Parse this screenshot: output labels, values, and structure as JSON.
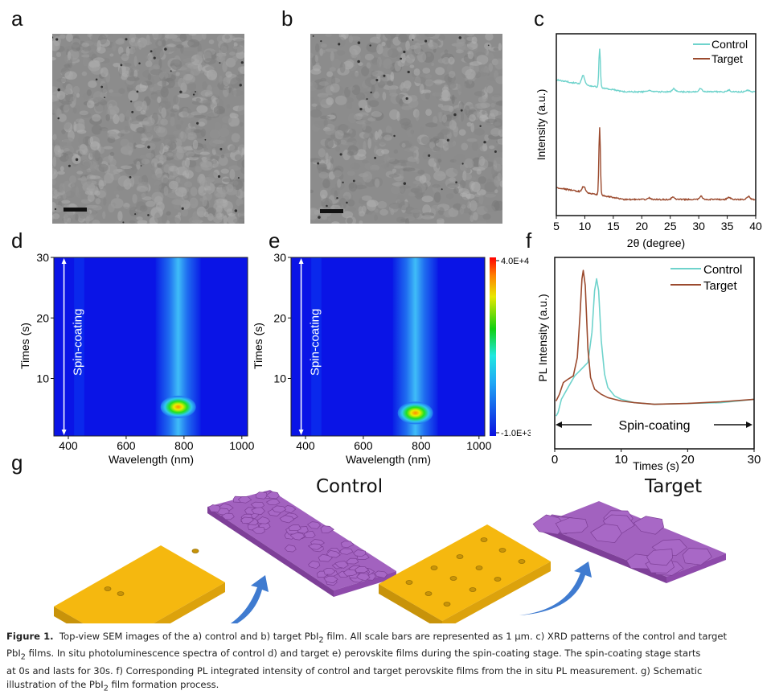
{
  "panels": {
    "a": {
      "label": "a",
      "type": "SEM image",
      "subject": "control PbI2 film",
      "scale_bar": "1 µm"
    },
    "b": {
      "label": "b",
      "type": "SEM image",
      "subject": "target PbI2 film",
      "scale_bar": "1 µm"
    },
    "c": {
      "label": "c"
    },
    "d": {
      "label": "d"
    },
    "e": {
      "label": "e"
    },
    "f": {
      "label": "f"
    },
    "g": {
      "label": "g",
      "control_title": "Control",
      "target_title": "Target"
    }
  },
  "colors": {
    "control": "#6fd3cc",
    "target": "#9b4a2e",
    "substrate": "#f5b80f",
    "film": "#a262bf",
    "arrow": "#3f7bd0"
  },
  "chart_data": [
    {
      "id": "c",
      "type": "line",
      "title": "",
      "xlabel": "2θ (degree)",
      "ylabel": "Intensity (a.u.)",
      "xlim": [
        5,
        40
      ],
      "xticks": [
        "5",
        "10",
        "15",
        "20",
        "25",
        "30",
        "35",
        "40"
      ],
      "yticks_shown": false,
      "legend": {
        "placement": "top-right",
        "entries": [
          "Control",
          "Target"
        ]
      },
      "series": [
        {
          "name": "Control",
          "offset": 0.72,
          "peaks": [
            [
              9.7,
              0.06
            ],
            [
              12.6,
              0.26
            ],
            [
              21.3,
              0.01
            ],
            [
              25.6,
              0.02
            ],
            [
              30.3,
              0.02
            ],
            [
              35.3,
              0.01
            ],
            [
              38.6,
              0.01
            ]
          ],
          "baseline_start": 0.08,
          "baseline_end": 0.0
        },
        {
          "name": "Target",
          "offset": 0.0,
          "peaks": [
            [
              9.8,
              0.04
            ],
            [
              12.6,
              0.45
            ],
            [
              21.3,
              0.01
            ],
            [
              25.5,
              0.015
            ],
            [
              30.4,
              0.02
            ],
            [
              35.3,
              0.015
            ],
            [
              38.7,
              0.02
            ]
          ],
          "baseline_start": 0.08,
          "baseline_end": 0.0
        }
      ]
    },
    {
      "id": "d",
      "type": "heatmap",
      "xlabel": "Wavelength (nm)",
      "ylabel": "Times (s)",
      "xlim": [
        350,
        1020
      ],
      "ylim": [
        0.5,
        30
      ],
      "xticks": [
        "400",
        "600",
        "800",
        "1000"
      ],
      "yticks": [
        "10",
        "20",
        "30"
      ],
      "annotation": "Spin-coating",
      "hotspot": {
        "wavelength_nm": 780,
        "time_s": 5.3,
        "intensity": 32000.0
      },
      "emission_band_nm": 780
    },
    {
      "id": "e",
      "type": "heatmap",
      "xlabel": "Wavelength (nm)",
      "ylabel": "Times (s)",
      "xlim": [
        350,
        1020
      ],
      "ylim": [
        0.5,
        30
      ],
      "xticks": [
        "400",
        "600",
        "800",
        "1000"
      ],
      "yticks": [
        "10",
        "20",
        "30"
      ],
      "annotation": "Spin-coating",
      "hotspot": {
        "wavelength_nm": 780,
        "time_s": 4.3,
        "intensity": 35000.0
      },
      "emission_band_nm": 780,
      "colorbar": {
        "max_label": "4.0E+4",
        "min_label": "-1.0E+3",
        "max": 40000,
        "min": -1000
      }
    },
    {
      "id": "f",
      "type": "line",
      "xlabel": "Times (s)",
      "ylabel": "PL Intensity (a.u.)",
      "xlim": [
        0,
        30
      ],
      "ylim": [
        0,
        1
      ],
      "xticks": [
        "0",
        "10",
        "20",
        "30"
      ],
      "yticks_shown": false,
      "legend": {
        "placement": "top-right",
        "entries": [
          "Control",
          "Target"
        ]
      },
      "annotation": "Spin-coating",
      "series": [
        {
          "name": "Control",
          "x": [
            0.2,
            0.5,
            1,
            2,
            3,
            4,
            5,
            5.6,
            6,
            6.3,
            6.6,
            7,
            7.5,
            8,
            9,
            10,
            12,
            15,
            20,
            25,
            30
          ],
          "y": [
            0.1,
            0.12,
            0.2,
            0.27,
            0.34,
            0.38,
            0.42,
            0.6,
            0.85,
            0.92,
            0.85,
            0.55,
            0.35,
            0.27,
            0.22,
            0.2,
            0.18,
            0.17,
            0.175,
            0.18,
            0.2
          ]
        },
        {
          "name": "Target",
          "x": [
            0.2,
            0.7,
            1.3,
            2,
            2.8,
            3.4,
            3.8,
            4.1,
            4.3,
            4.6,
            5,
            5.4,
            6,
            7,
            8,
            10,
            12,
            15,
            20,
            25,
            30
          ],
          "y": [
            0.19,
            0.23,
            0.3,
            0.32,
            0.34,
            0.45,
            0.7,
            0.92,
            0.97,
            0.88,
            0.5,
            0.33,
            0.26,
            0.23,
            0.21,
            0.19,
            0.18,
            0.17,
            0.175,
            0.185,
            0.2
          ]
        }
      ]
    }
  ],
  "schematic": {
    "control_pore_count": 3,
    "target_pore_count": 12
  },
  "caption": {
    "label": "Figure 1.",
    "line1": "Top-view SEM images of the a) control and b) target PbI",
    "sub2": "2",
    "line1b": " film. All scale bars are represented as 1 µm. c) XRD patterns of the control and target",
    "line2a": "PbI",
    "line2b": " films. In situ photoluminescence spectra of control d) and target e) perovskite films during the spin-coating stage. The spin-coating stage starts",
    "line3": "at 0s and lasts for 30s. f) Corresponding PL integrated intensity of control and target perovskite films from the in situ PL measurement. g) Schematic",
    "line4a": "illustration of the PbI",
    "line4b": " film formation process."
  }
}
